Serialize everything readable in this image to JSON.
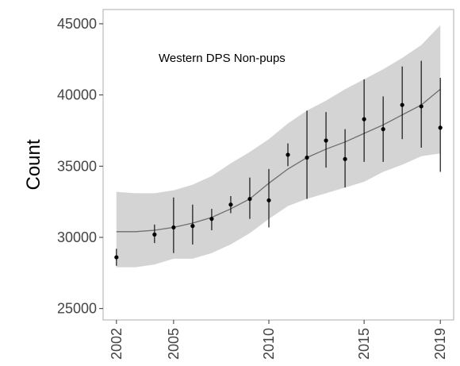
{
  "chart_data": {
    "type": "scatter",
    "title": "",
    "annotation": "Western DPS Non-pups",
    "xlabel": "",
    "ylabel": "Count",
    "xlim": [
      2001.3,
      2019.7
    ],
    "ylim": [
      24200,
      46000
    ],
    "x_ticks": [
      2002,
      2005,
      2010,
      2015,
      2019
    ],
    "y_ticks": [
      25000,
      30000,
      35000,
      40000,
      45000
    ],
    "x_tick_labels": [
      "2002",
      "2005",
      "2010",
      "2015",
      "2019"
    ],
    "y_tick_labels": [
      "25000",
      "30000",
      "35000",
      "40000",
      "45000"
    ],
    "grid": false,
    "legend": "none",
    "colors": {
      "band": "#d4d4d4",
      "trend": "#6e6e6e",
      "points": "#000000",
      "frame": "#bbbbbb"
    },
    "series": [
      {
        "kind": "observed",
        "points": [
          {
            "x": 2002,
            "y": 28600,
            "low": 28000,
            "high": 29200
          },
          {
            "x": 2004,
            "y": 30200,
            "low": 29600,
            "high": 30900
          },
          {
            "x": 2005,
            "y": 30700,
            "low": 28900,
            "high": 32800
          },
          {
            "x": 2006,
            "y": 30800,
            "low": 29500,
            "high": 32300
          },
          {
            "x": 2007,
            "y": 31300,
            "low": 30500,
            "high": 32000
          },
          {
            "x": 2008,
            "y": 32300,
            "low": 31700,
            "high": 32900
          },
          {
            "x": 2009,
            "y": 32700,
            "low": 31300,
            "high": 34200
          },
          {
            "x": 2010,
            "y": 32600,
            "low": 30700,
            "high": 34800
          },
          {
            "x": 2011,
            "y": 35800,
            "low": 35000,
            "high": 36600
          },
          {
            "x": 2012,
            "y": 35600,
            "low": 32700,
            "high": 38900
          },
          {
            "x": 2013,
            "y": 36800,
            "low": 34900,
            "high": 38800
          },
          {
            "x": 2014,
            "y": 35500,
            "low": 33500,
            "high": 37600
          },
          {
            "x": 2015,
            "y": 38300,
            "low": 35300,
            "high": 41100
          },
          {
            "x": 2016,
            "y": 37600,
            "low": 35300,
            "high": 39900
          },
          {
            "x": 2017,
            "y": 39300,
            "low": 36900,
            "high": 42000
          },
          {
            "x": 2018,
            "y": 39200,
            "low": 36300,
            "high": 42400
          },
          {
            "x": 2019,
            "y": 37700,
            "low": 34600,
            "high": 41200
          }
        ]
      },
      {
        "kind": "trend",
        "x": [
          2002,
          2003,
          2004,
          2005,
          2006,
          2007,
          2008,
          2009,
          2010,
          2011,
          2012,
          2013,
          2014,
          2015,
          2016,
          2017,
          2018,
          2019
        ],
        "y": [
          30400,
          30400,
          30500,
          30700,
          31000,
          31400,
          32000,
          32700,
          33800,
          34800,
          35600,
          36200,
          36700,
          37300,
          37900,
          38600,
          39300,
          40400
        ],
        "lower": [
          27900,
          27900,
          28100,
          28500,
          28500,
          28900,
          29500,
          30300,
          31300,
          32200,
          32700,
          33100,
          33500,
          33900,
          34600,
          35100,
          35700,
          35900
        ],
        "upper": [
          33200,
          33100,
          33100,
          33300,
          33700,
          34300,
          35200,
          36000,
          36900,
          38000,
          38900,
          39600,
          40400,
          41100,
          41800,
          42600,
          43500,
          44900
        ]
      }
    ]
  }
}
